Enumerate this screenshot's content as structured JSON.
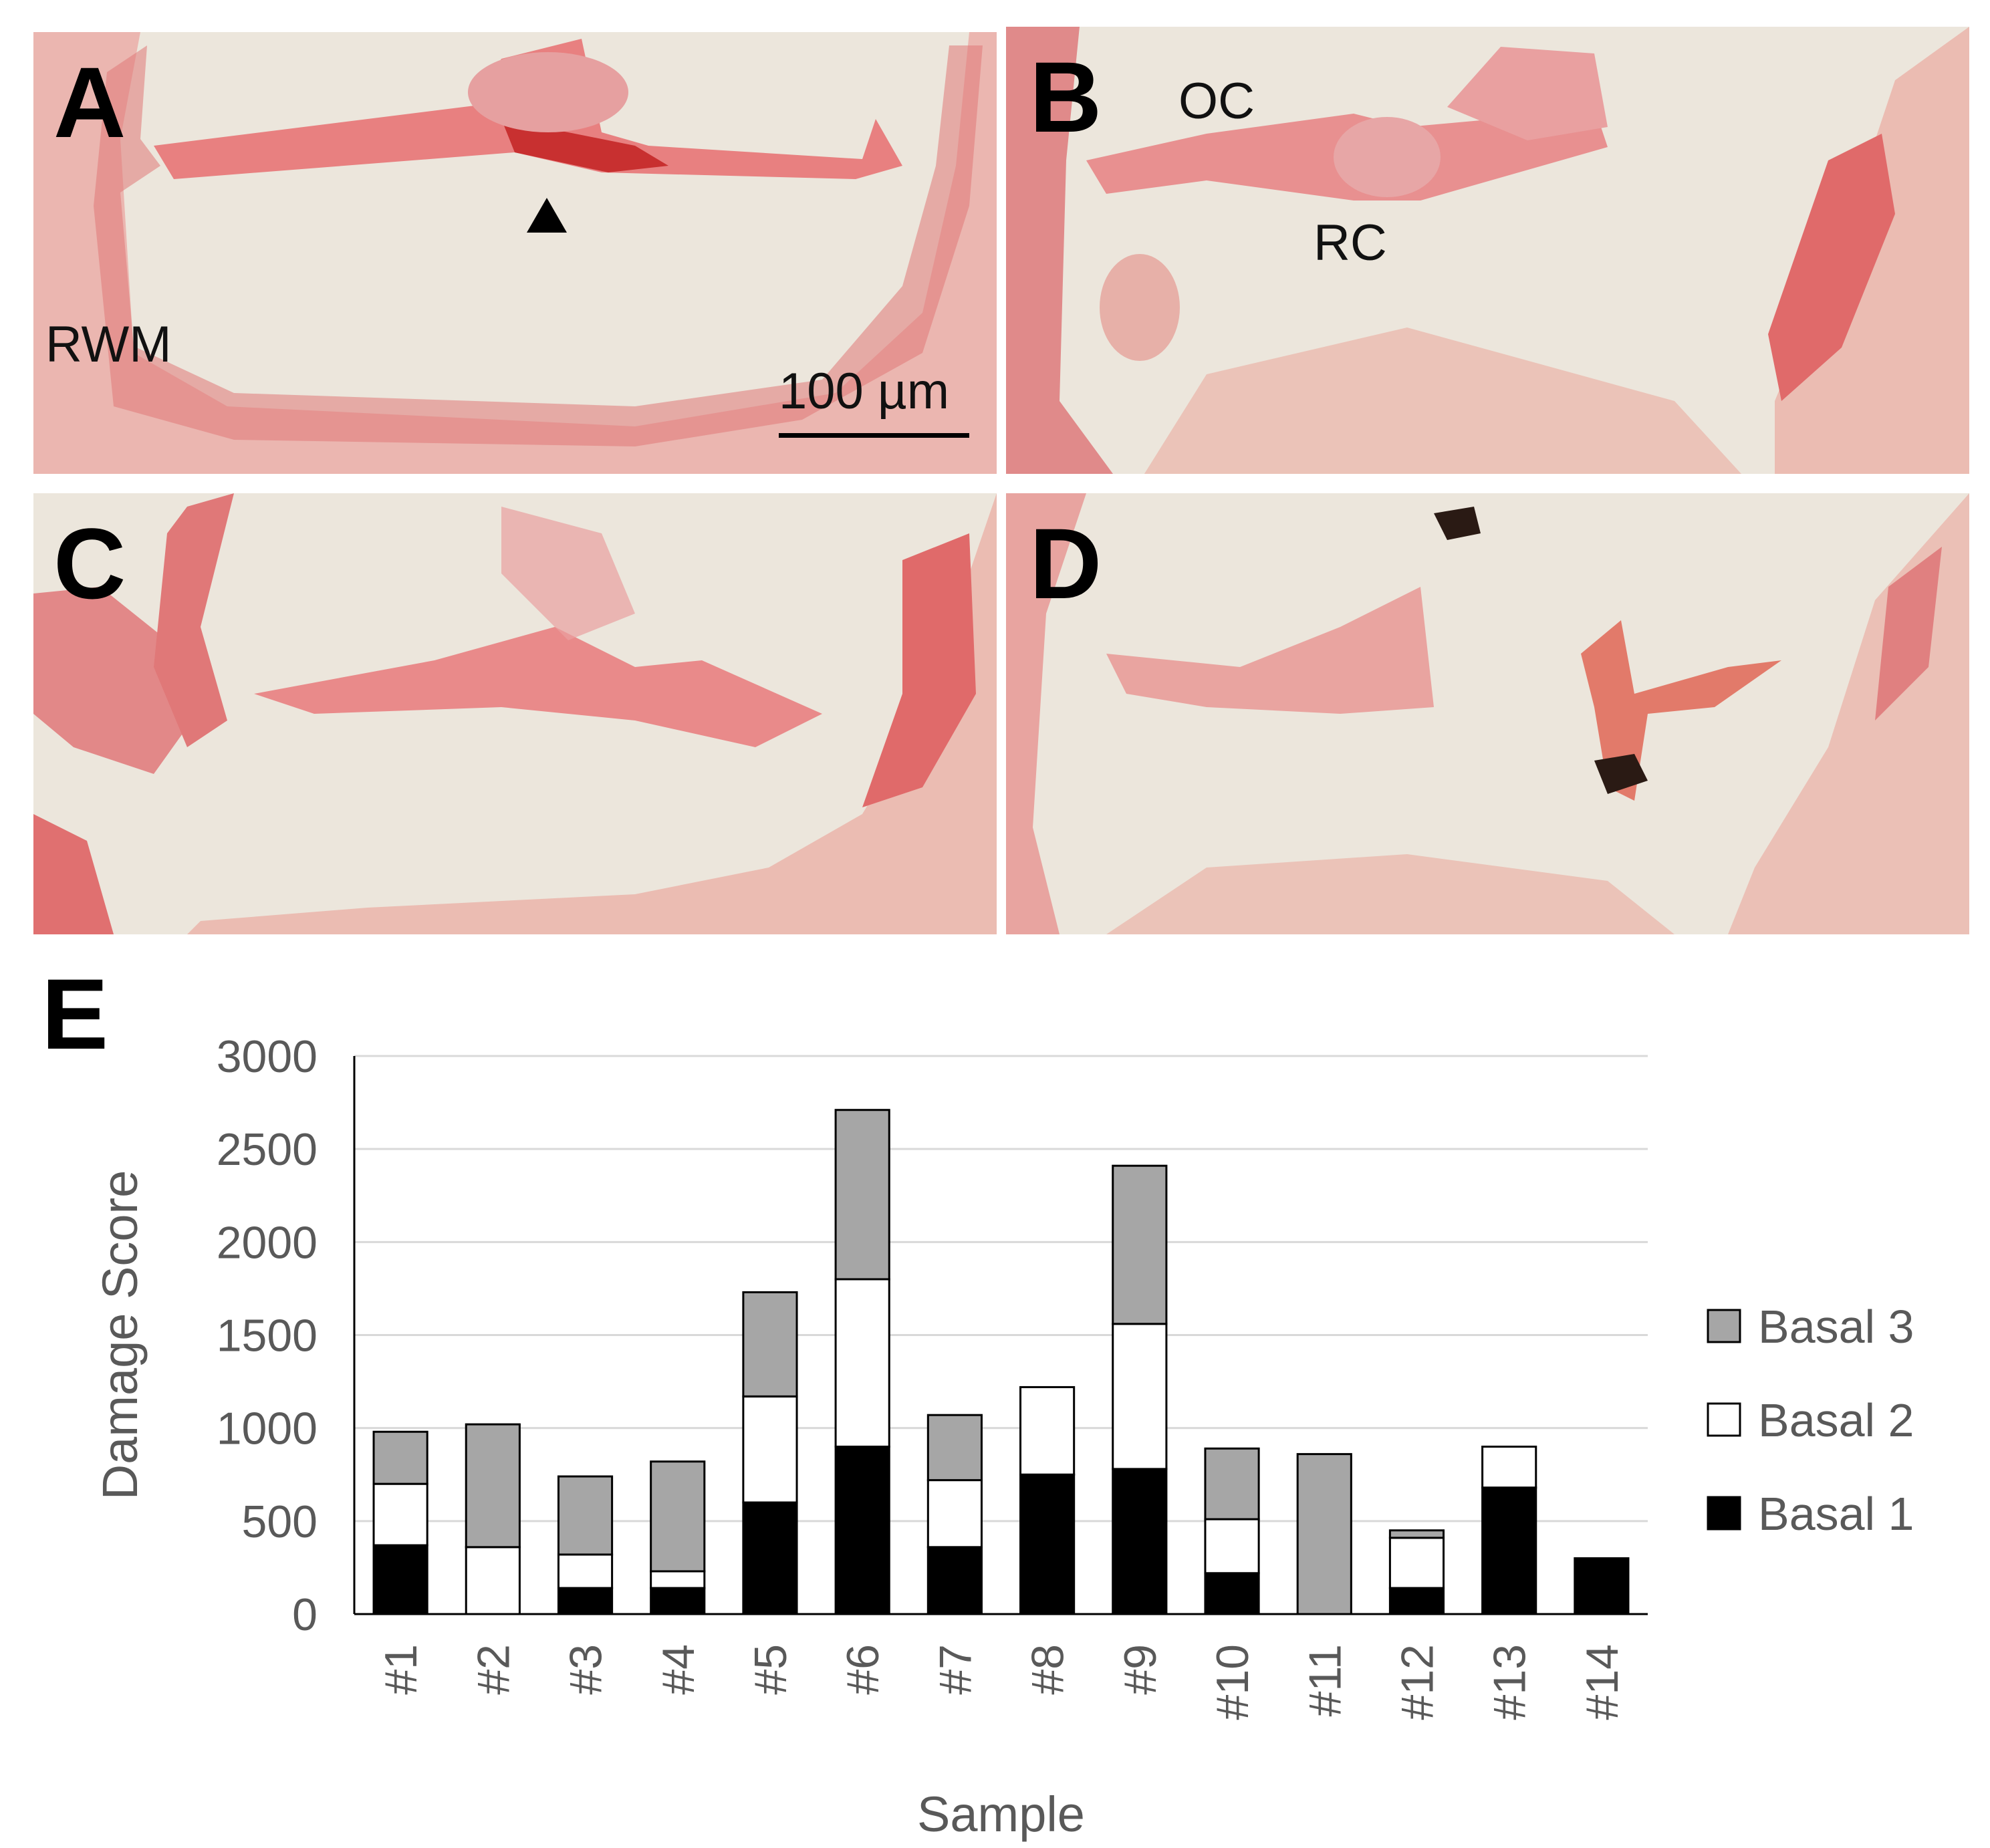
{
  "panels": {
    "a": {
      "letter": "A",
      "rwm_label": "RWM",
      "scale_label": "100 µm"
    },
    "b": {
      "letter": "B",
      "oc_label": "OC",
      "rc_label": "RC"
    },
    "c": {
      "letter": "C"
    },
    "d": {
      "letter": "D"
    },
    "e": {
      "letter": "E"
    }
  },
  "colors": {
    "tissue": "#e88a8a",
    "tissue_dark": "#d23a3a",
    "background": "#ece6dc",
    "basal1": "#000000",
    "basal2": "#ffffff",
    "basal3": "#a6a6a6",
    "gridline": "#d9d9d9",
    "text": "#595959"
  },
  "chart_data": {
    "type": "bar",
    "stacked": true,
    "title": "",
    "xlabel": "Sample",
    "ylabel": "Damage Score",
    "ylim": [
      0,
      3000
    ],
    "yticks": [
      0,
      500,
      1000,
      1500,
      2000,
      2500,
      3000
    ],
    "grid": true,
    "legend_position": "right",
    "categories": [
      "#1",
      "#2",
      "#3",
      "#4",
      "#5",
      "#6",
      "#7",
      "#8",
      "#9",
      "#10",
      "#11",
      "#12",
      "#13",
      "#14"
    ],
    "series": [
      {
        "name": "Basal 1",
        "color": "#000000",
        "values": [
          370,
          0,
          140,
          140,
          600,
          900,
          360,
          750,
          780,
          220,
          0,
          140,
          680,
          300
        ]
      },
      {
        "name": "Basal 2",
        "color": "#ffffff",
        "values": [
          330,
          360,
          180,
          90,
          570,
          900,
          360,
          470,
          780,
          290,
          0,
          270,
          220,
          0
        ]
      },
      {
        "name": "Basal 3",
        "color": "#a6a6a6",
        "values": [
          280,
          660,
          420,
          590,
          560,
          910,
          350,
          0,
          850,
          380,
          860,
          40,
          0,
          0
        ]
      }
    ],
    "legend_order": [
      "Basal 3",
      "Basal 2",
      "Basal 1"
    ]
  }
}
